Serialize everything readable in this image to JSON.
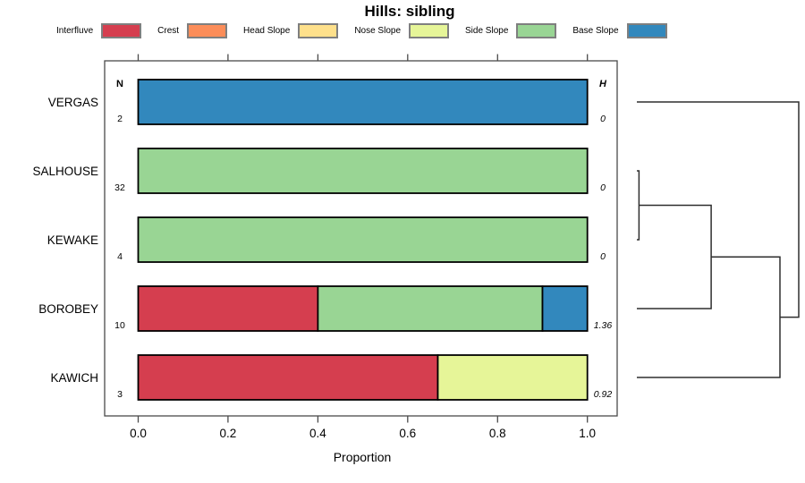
{
  "title": "Hills: sibling",
  "legend": {
    "items": [
      {
        "label": "Interfluve",
        "color": "#d53e4f"
      },
      {
        "label": "Crest",
        "color": "#fc8d59"
      },
      {
        "label": "Head Slope",
        "color": "#fee08b"
      },
      {
        "label": "Nose Slope",
        "color": "#e6f598"
      },
      {
        "label": "Side Slope",
        "color": "#99d594"
      },
      {
        "label": "Base Slope",
        "color": "#3288bd"
      }
    ]
  },
  "chart_data": {
    "type": "bar",
    "orientation": "horizontal",
    "stacked": true,
    "title": "Hills: sibling",
    "xlabel": "Proportion",
    "xlim": [
      0,
      1
    ],
    "x_ticks": [
      "0.0",
      "0.2",
      "0.4",
      "0.6",
      "0.8",
      "1.0"
    ],
    "grid": false,
    "legend_position": "top",
    "categories": [
      "Interfluve",
      "Crest",
      "Head Slope",
      "Nose Slope",
      "Side Slope",
      "Base Slope"
    ],
    "colors": {
      "Interfluve": "#d53e4f",
      "Crest": "#fc8d59",
      "Head Slope": "#fee08b",
      "Nose Slope": "#e6f598",
      "Side Slope": "#99d594",
      "Base Slope": "#3288bd"
    },
    "count_column_header": "N",
    "entropy_column_header": "H",
    "rows": [
      {
        "label": "VERGAS",
        "n": "2",
        "entropy": "0",
        "segments": [
          {
            "category": "Base Slope",
            "proportion": 1.0
          }
        ]
      },
      {
        "label": "SALHOUSE",
        "n": "32",
        "entropy": "0",
        "segments": [
          {
            "category": "Side Slope",
            "proportion": 1.0
          }
        ]
      },
      {
        "label": "KEWAKE",
        "n": "4",
        "entropy": "0",
        "segments": [
          {
            "category": "Side Slope",
            "proportion": 1.0
          }
        ]
      },
      {
        "label": "BOROBEY",
        "n": "10",
        "entropy": "1.36",
        "segments": [
          {
            "category": "Interfluve",
            "proportion": 0.4
          },
          {
            "category": "Side Slope",
            "proportion": 0.5
          },
          {
            "category": "Base Slope",
            "proportion": 0.1
          }
        ]
      },
      {
        "label": "KAWICH",
        "n": "3",
        "entropy": "0.92",
        "segments": [
          {
            "category": "Interfluve",
            "proportion": 0.667
          },
          {
            "category": "Nose Slope",
            "proportion": 0.333
          }
        ]
      }
    ],
    "dendrogram": {
      "leaf_order": [
        "VERGAS",
        "SALHOUSE",
        "KEWAKE",
        "BOROBEY",
        "KAWICH"
      ],
      "merges": [
        {
          "id": "c1",
          "children": [
            "SALHOUSE",
            "KEWAKE"
          ],
          "height": 0.013
        },
        {
          "id": "c2",
          "children": [
            "c1",
            "BOROBEY"
          ],
          "height": 0.459
        },
        {
          "id": "c3",
          "children": [
            "c2",
            "KAWICH"
          ],
          "height": 0.884
        },
        {
          "id": "c4",
          "children": [
            "VERGAS",
            "c3"
          ],
          "height": 1.0
        }
      ]
    }
  }
}
